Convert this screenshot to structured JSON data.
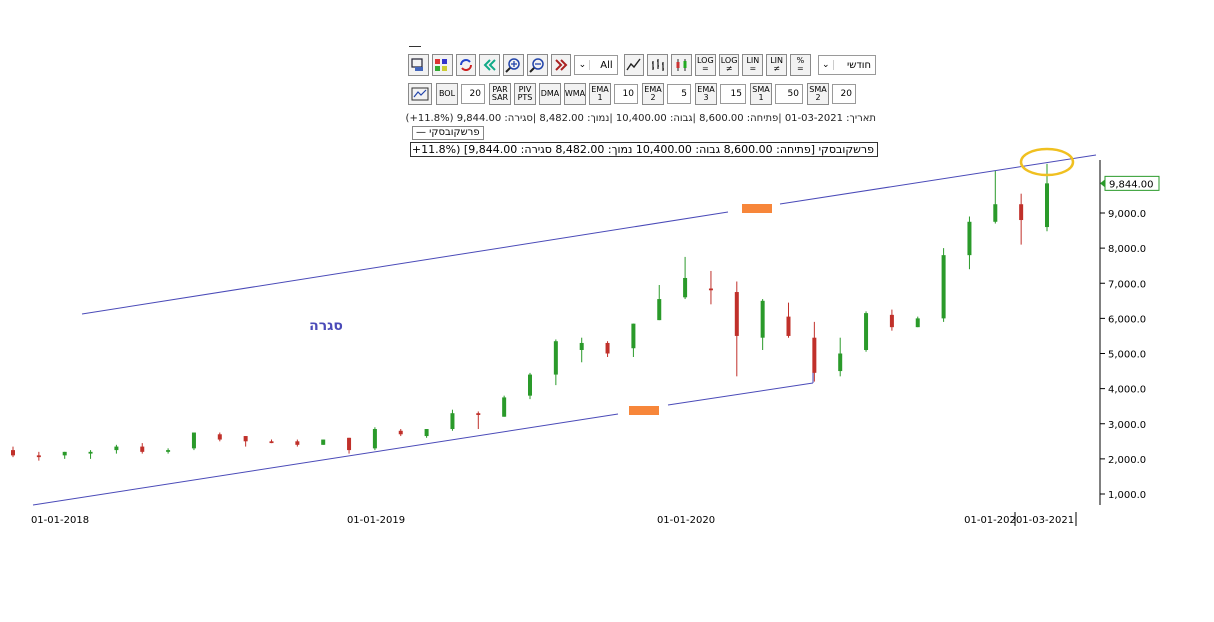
{
  "toolbar": {
    "range_select": "All",
    "period_select": "חודשי",
    "buttons_row1": [
      {
        "name": "print-icon",
        "label": ""
      },
      {
        "name": "palette-icon",
        "label": ""
      },
      {
        "name": "refresh-icon",
        "label": ""
      },
      {
        "name": "rewind-icon",
        "label": ""
      },
      {
        "name": "zoom-in-icon",
        "label": ""
      },
      {
        "name": "zoom-out-icon",
        "label": ""
      },
      {
        "name": "fast-forward-icon",
        "label": ""
      },
      {
        "name": "line-chart-icon",
        "label": ""
      },
      {
        "name": "ohlc-chart-icon",
        "label": ""
      },
      {
        "name": "candle-chart-icon",
        "label": ""
      },
      {
        "name": "log-button",
        "label": "LOG\n="
      },
      {
        "name": "log-ne-button",
        "label": "LOG\n≠"
      },
      {
        "name": "lin-button",
        "label": "LIN\n="
      },
      {
        "name": "lin-ne-button",
        "label": "LIN\n≠"
      },
      {
        "name": "percent-button",
        "label": "%\n="
      }
    ],
    "indicators": [
      {
        "name": "bol",
        "label": "BOL",
        "value": "20"
      },
      {
        "name": "parsar",
        "label": "PAR\nSAR",
        "value": ""
      },
      {
        "name": "pivpts",
        "label": "PIV\nPTS",
        "value": ""
      },
      {
        "name": "dma",
        "label": "DMA",
        "value": ""
      },
      {
        "name": "wma",
        "label": "WMA",
        "value": ""
      },
      {
        "name": "ema1",
        "label": "EMA\n1",
        "value": "10"
      },
      {
        "name": "ema2",
        "label": "EMA\n2",
        "value": "5"
      },
      {
        "name": "ema3",
        "label": "EMA\n3",
        "value": "15"
      },
      {
        "name": "sma1",
        "label": "SMA\n1",
        "value": "50"
      },
      {
        "name": "sma2",
        "label": "SMA\n2",
        "value": "20"
      }
    ]
  },
  "info_line": "תאריך: 01-03-2021 |פתיחה: 8,600.00 |גבוה: 10,400.00 |נמוך: 8,482.00 |סגירה: 9,844.00 (11.8%+)",
  "legend_label": "פרשקובסקי —",
  "status_line": "פרשקובסקי [פתיחה: 8,600.00  גבוה: 10,400.00  נמוך: 8,482.00  סגירה: 9,844.00] (11.8%+)",
  "annotation_text": "סגרה",
  "chart_data": {
    "type": "candlestick",
    "x_tick_labels": [
      "01-01-2018",
      "01-01-2019",
      "01-01-2020",
      "01-01-202",
      "01-03-2021"
    ],
    "y_tick_labels": [
      "1,000.0",
      "2,000.0",
      "3,000.0",
      "4,000.0",
      "5,000.0",
      "6,000.0",
      "7,000.0",
      "8,000.0",
      "9,000.0"
    ],
    "y_ticks": [
      1000,
      2000,
      3000,
      4000,
      5000,
      6000,
      7000,
      8000,
      9000
    ],
    "ylim": [
      600,
      10700
    ],
    "last_value_label": "9,844.00",
    "last_value": 9844,
    "up_color": "#2a9a2a",
    "down_color": "#c0302a",
    "line_color": "#4a4ab8",
    "highlight_color": "#f0c020",
    "marker_color": "#f7863a",
    "candles": [
      {
        "date": "2017-11",
        "o": 2250,
        "h": 2350,
        "l": 2050,
        "c": 2100
      },
      {
        "date": "2017-12",
        "o": 2100,
        "h": 2200,
        "l": 1950,
        "c": 2050
      },
      {
        "date": "2018-01",
        "o": 2100,
        "h": 2200,
        "l": 2000,
        "c": 2200
      },
      {
        "date": "2018-02",
        "o": 2150,
        "h": 2250,
        "l": 2000,
        "c": 2200
      },
      {
        "date": "2018-03",
        "o": 2250,
        "h": 2400,
        "l": 2150,
        "c": 2350
      },
      {
        "date": "2018-04",
        "o": 2350,
        "h": 2450,
        "l": 2150,
        "c": 2200
      },
      {
        "date": "2018-05",
        "o": 2200,
        "h": 2300,
        "l": 2150,
        "c": 2250
      },
      {
        "date": "2018-06",
        "o": 2300,
        "h": 2750,
        "l": 2250,
        "c": 2750
      },
      {
        "date": "2018-07",
        "o": 2700,
        "h": 2750,
        "l": 2500,
        "c": 2550
      },
      {
        "date": "2018-08",
        "o": 2650,
        "h": 2650,
        "l": 2350,
        "c": 2500
      },
      {
        "date": "2018-09",
        "o": 2500,
        "h": 2550,
        "l": 2450,
        "c": 2450
      },
      {
        "date": "2018-10",
        "o": 2500,
        "h": 2550,
        "l": 2350,
        "c": 2400
      },
      {
        "date": "2018-11",
        "o": 2400,
        "h": 2550,
        "l": 2400,
        "c": 2550
      },
      {
        "date": "2018-12",
        "o": 2600,
        "h": 2600,
        "l": 2150,
        "c": 2250
      },
      {
        "date": "2019-01",
        "o": 2300,
        "h": 2900,
        "l": 2250,
        "c": 2850
      },
      {
        "date": "2019-02",
        "o": 2800,
        "h": 2850,
        "l": 2650,
        "c": 2700
      },
      {
        "date": "2019-03",
        "o": 2650,
        "h": 2850,
        "l": 2600,
        "c": 2850
      },
      {
        "date": "2019-04",
        "o": 2850,
        "h": 3400,
        "l": 2800,
        "c": 3300
      },
      {
        "date": "2019-05",
        "o": 3300,
        "h": 3350,
        "l": 2850,
        "c": 3250
      },
      {
        "date": "2019-06",
        "o": 3200,
        "h": 3800,
        "l": 3200,
        "c": 3750
      },
      {
        "date": "2019-07",
        "o": 3800,
        "h": 4450,
        "l": 3700,
        "c": 4400
      },
      {
        "date": "2019-08",
        "o": 4400,
        "h": 5400,
        "l": 4100,
        "c": 5350
      },
      {
        "date": "2019-09",
        "o": 5100,
        "h": 5450,
        "l": 4750,
        "c": 5300
      },
      {
        "date": "2019-10",
        "o": 5300,
        "h": 5350,
        "l": 4900,
        "c": 5000
      },
      {
        "date": "2019-11",
        "o": 5150,
        "h": 5850,
        "l": 4900,
        "c": 5850
      },
      {
        "date": "2019-12",
        "o": 5950,
        "h": 6950,
        "l": 5950,
        "c": 6550
      },
      {
        "date": "2020-01",
        "o": 6600,
        "h": 7750,
        "l": 6550,
        "c": 7150
      },
      {
        "date": "2020-02",
        "o": 6850,
        "h": 7350,
        "l": 6400,
        "c": 6800
      },
      {
        "date": "2020-03",
        "o": 6750,
        "h": 7050,
        "l": 4350,
        "c": 5500
      },
      {
        "date": "2020-04",
        "o": 5450,
        "h": 6550,
        "l": 5100,
        "c": 6500
      },
      {
        "date": "2020-05",
        "o": 6050,
        "h": 6450,
        "l": 5450,
        "c": 5500
      },
      {
        "date": "2020-06",
        "o": 5450,
        "h": 5900,
        "l": 4200,
        "c": 4450
      },
      {
        "date": "2020-07",
        "o": 4500,
        "h": 5450,
        "l": 4350,
        "c": 5000
      },
      {
        "date": "2020-08",
        "o": 5100,
        "h": 6200,
        "l": 5050,
        "c": 6150
      },
      {
        "date": "2020-09",
        "o": 6100,
        "h": 6250,
        "l": 5650,
        "c": 5750
      },
      {
        "date": "2020-10",
        "o": 5750,
        "h": 6050,
        "l": 5750,
        "c": 6000
      },
      {
        "date": "2020-11",
        "o": 6000,
        "h": 8000,
        "l": 5900,
        "c": 7800
      },
      {
        "date": "2020-12",
        "o": 7800,
        "h": 8900,
        "l": 7400,
        "c": 8750
      },
      {
        "date": "2021-01",
        "o": 8750,
        "h": 10200,
        "l": 8700,
        "c": 9250
      },
      {
        "date": "2021-02",
        "o": 9250,
        "h": 9550,
        "l": 8100,
        "c": 8800
      },
      {
        "date": "2021-03",
        "o": 8600,
        "h": 10400,
        "l": 8482,
        "c": 9844
      }
    ]
  }
}
